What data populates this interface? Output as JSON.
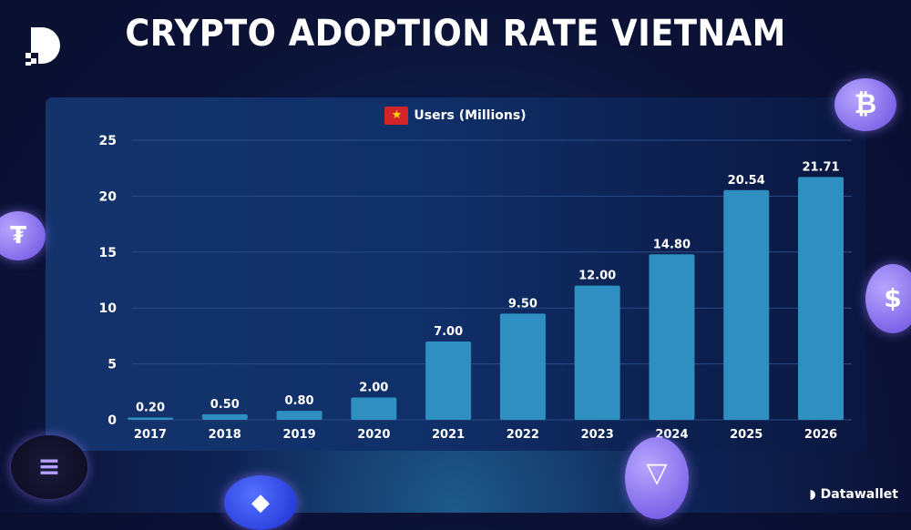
{
  "header": {
    "title": "CRYPTO ADOPTION RATE VIETNAM"
  },
  "brand": {
    "name": "Datawallet"
  },
  "colors": {
    "bar": "#2e8fc0",
    "flag": "#d3242a",
    "background": "#0b1236"
  },
  "icons": [
    "datawallet-logo-icon",
    "vietnam-flag-icon",
    "bitcoin-coin-icon",
    "tether-coin-icon",
    "usdc-coin-icon",
    "solana-coin-icon",
    "ethereum-coin-icon",
    "tron-coin-icon"
  ],
  "chart_data": {
    "type": "bar",
    "title": "",
    "legend": [
      "Users (Millions)"
    ],
    "legend_placement": "top-center",
    "categories": [
      "2017",
      "2018",
      "2019",
      "2020",
      "2021",
      "2022",
      "2023",
      "2024",
      "2025",
      "2026"
    ],
    "series": [
      {
        "name": "Users (Millions)",
        "values": [
          0.2,
          0.5,
          0.8,
          2.0,
          7.0,
          9.5,
          12.0,
          14.8,
          20.54,
          21.71
        ]
      }
    ],
    "data_labels": [
      "0.20",
      "0.50",
      "0.80",
      "2.00",
      "7.00",
      "9.50",
      "12.00",
      "14.80",
      "20.54",
      "21.71"
    ],
    "ylim": [
      0,
      25
    ],
    "yticks": [
      0,
      5,
      10,
      15,
      20,
      25
    ],
    "grid": true,
    "xlabel": "",
    "ylabel": ""
  }
}
